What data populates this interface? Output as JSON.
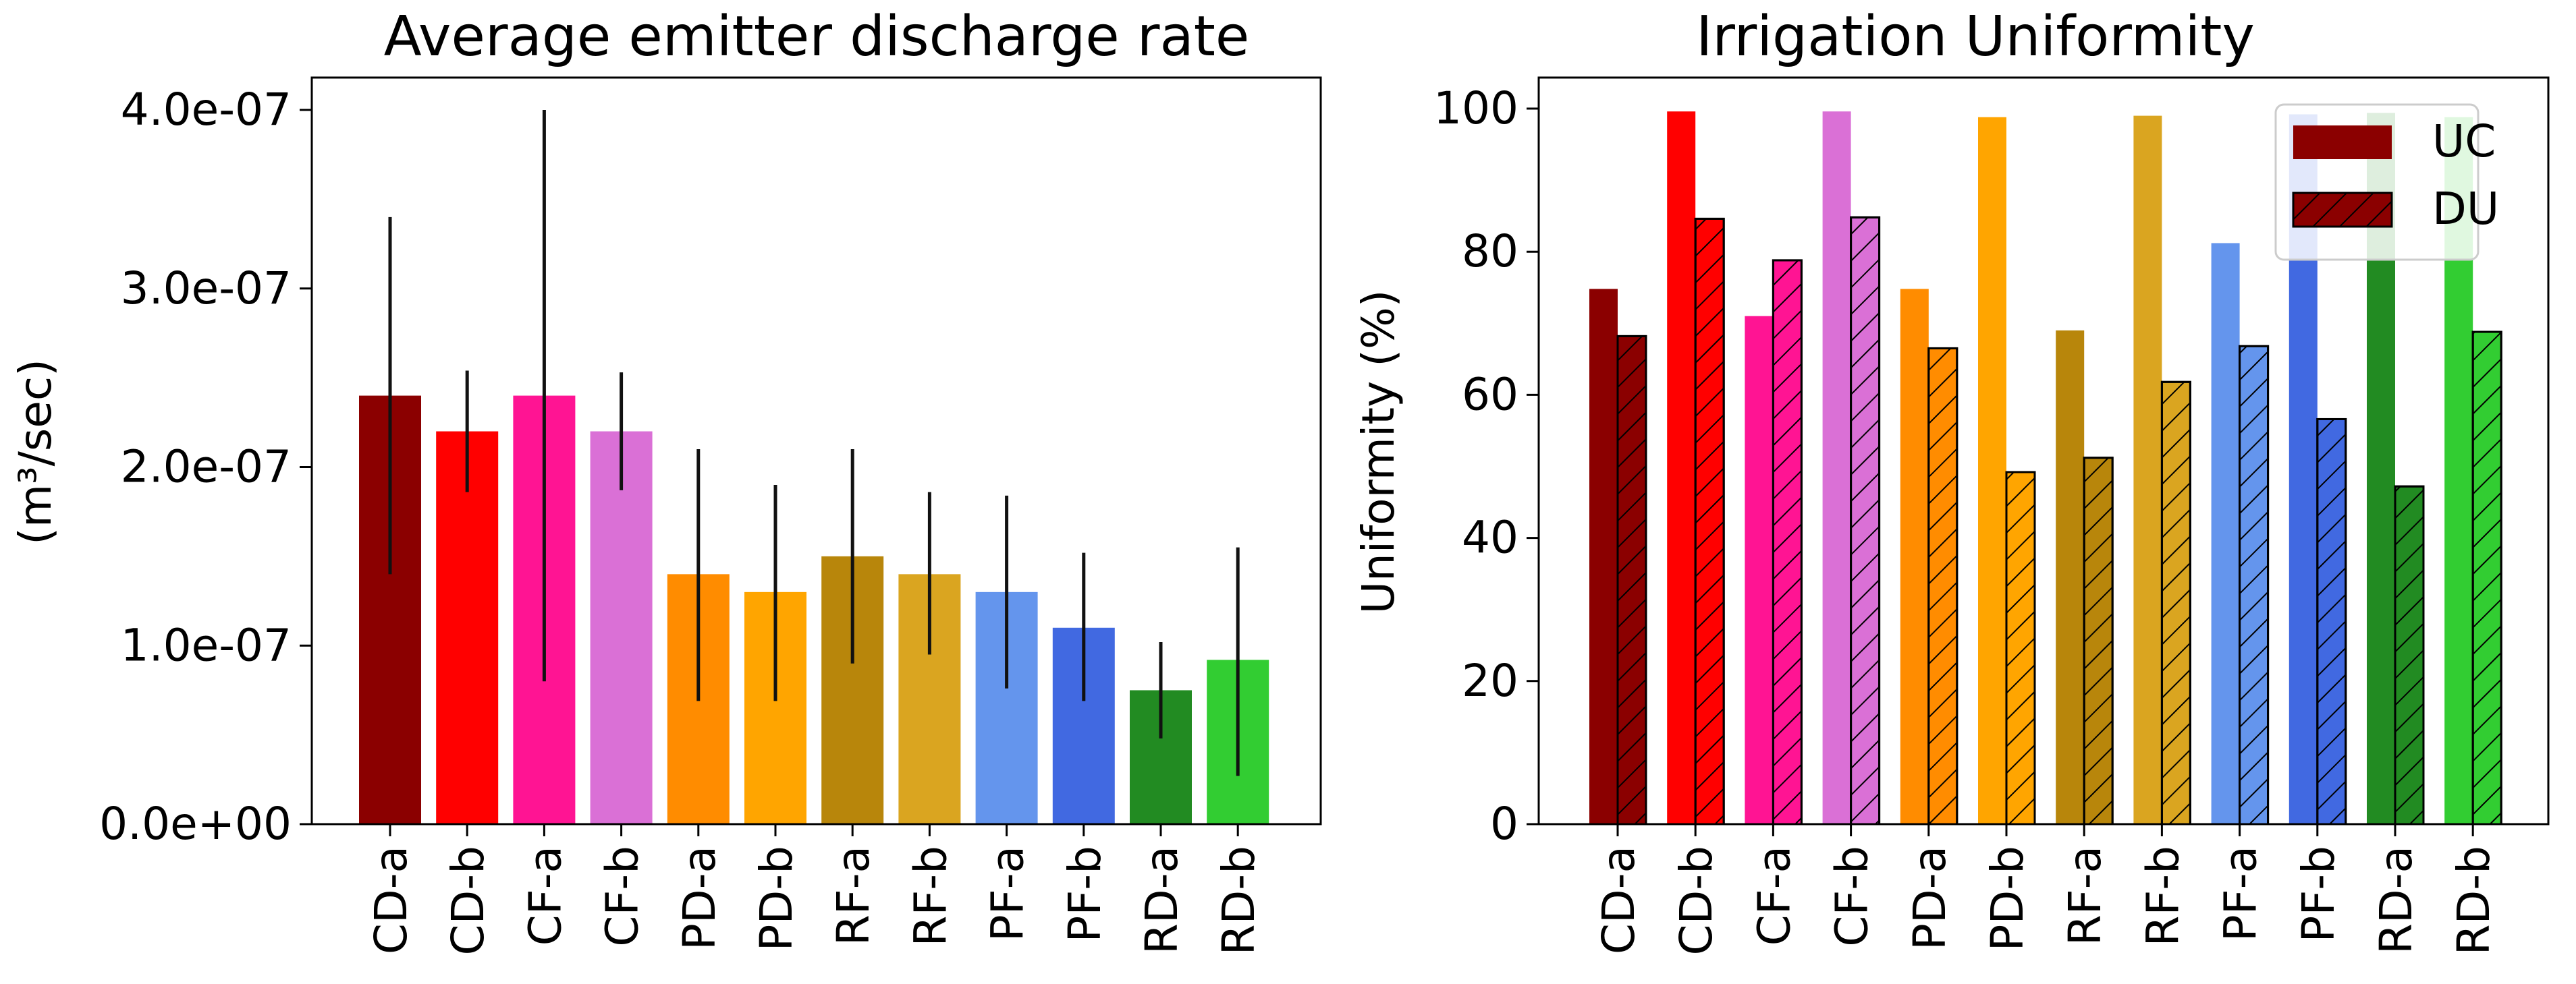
{
  "chart_data": [
    {
      "type": "bar",
      "title": "Average emitter discharge rate",
      "ylabel": "(m³/sec)",
      "xlabel": "",
      "ylim": [
        0,
        4.2e-07
      ],
      "yticks": [
        0,
        1e-07,
        2e-07,
        3e-07,
        4e-07
      ],
      "ytick_labels": [
        "0.0e+00",
        "1.0e-07",
        "2.0e-07",
        "3.0e-07",
        "4.0e-07"
      ],
      "categories": [
        "CD-a",
        "CD-b",
        "CF-a",
        "CF-b",
        "PD-a",
        "PD-b",
        "RF-a",
        "RF-b",
        "PF-a",
        "PF-b",
        "RD-a",
        "RD-b"
      ],
      "colors": [
        "#8b0000",
        "#ff0000",
        "#ff1493",
        "#da70d6",
        "#ff8c00",
        "#ffa500",
        "#b8860b",
        "#daa520",
        "#6495ed",
        "#4169e1",
        "#228b22",
        "#32cd32"
      ],
      "values": [
        2.4e-07,
        2.2e-07,
        2.4e-07,
        2.2e-07,
        1.4e-07,
        1.3e-07,
        1.5e-07,
        1.4e-07,
        1.3e-07,
        1.1e-07,
        7.5e-08,
        9.2e-08
      ],
      "error_low": [
        1.4e-07,
        1.86e-07,
        8e-08,
        1.87e-07,
        6.9e-08,
        6.9e-08,
        9e-08,
        9.5e-08,
        7.6e-08,
        6.9e-08,
        4.8e-08,
        2.7e-08
      ],
      "error_high": [
        3.4e-07,
        2.54e-07,
        4e-07,
        2.53e-07,
        2.1e-07,
        1.9e-07,
        2.1e-07,
        1.86e-07,
        1.84e-07,
        1.52e-07,
        1.02e-07,
        1.55e-07
      ]
    },
    {
      "type": "bar",
      "title": "Irrigation Uniformity",
      "ylabel": "Uniformity (%)",
      "xlabel": "",
      "ylim": [
        0,
        105
      ],
      "yticks": [
        0,
        20,
        40,
        60,
        80,
        100
      ],
      "ytick_labels": [
        "0",
        "20",
        "40",
        "60",
        "80",
        "100"
      ],
      "categories": [
        "CD-a",
        "CD-b",
        "CF-a",
        "CF-b",
        "PD-a",
        "PD-b",
        "RF-a",
        "RF-b",
        "PF-a",
        "PF-b",
        "RD-a",
        "RD-b"
      ],
      "colors": [
        "#8b0000",
        "#ff0000",
        "#ff1493",
        "#da70d6",
        "#ff8c00",
        "#ffa500",
        "#b8860b",
        "#daa520",
        "#6495ed",
        "#4169e1",
        "#228b22",
        "#32cd32"
      ],
      "series": [
        {
          "name": "UC",
          "hatched": false,
          "values": [
            74.8,
            99.6,
            71,
            99.6,
            74.8,
            98.8,
            69,
            99,
            81.2,
            99.2,
            99.4,
            98.8
          ]
        },
        {
          "name": "DU",
          "hatched": true,
          "values": [
            68.2,
            84.6,
            78.8,
            84.8,
            66.5,
            49.2,
            51.2,
            61.8,
            66.8,
            56.6,
            47.2,
            68.8
          ]
        }
      ],
      "legend": {
        "position": "top-right",
        "entries": [
          "UC",
          "DU"
        ],
        "swatch_color": "#8b0000"
      }
    }
  ]
}
